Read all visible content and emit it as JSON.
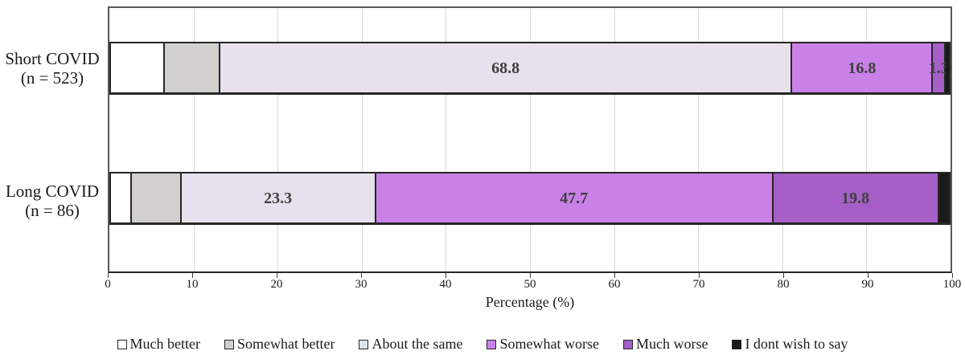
{
  "chart_data": {
    "type": "bar",
    "variant": "horizontal-stacked",
    "title": "",
    "xlabel": "Percentage (%)",
    "ylabel": "",
    "xlim": [
      0,
      100
    ],
    "xticks": [
      0,
      10,
      20,
      30,
      40,
      50,
      60,
      70,
      80,
      90,
      100
    ],
    "grid": "vertical",
    "legend_position": "bottom",
    "categories": [
      {
        "name": "Short COVID",
        "n": "(n = 523)"
      },
      {
        "name": "Long COVID",
        "n": "(n = 86)"
      }
    ],
    "series": [
      {
        "name": "Much better",
        "color": "#ffffff",
        "swatch": "#ffffff",
        "values": [
          6.3,
          2.3
        ],
        "labels": [
          "",
          ""
        ]
      },
      {
        "name": "Somewhat better",
        "color": "#d2cfcf",
        "swatch": "#d2cfcf",
        "values": [
          6.5,
          5.8
        ],
        "labels": [
          "",
          ""
        ]
      },
      {
        "name": "About the same",
        "color": "#e6e1ed",
        "swatch": "#dce6f1",
        "values": [
          68.8,
          23.3
        ],
        "labels": [
          "68.8",
          "23.3"
        ]
      },
      {
        "name": "Somewhat worse",
        "color": "#c981e8",
        "swatch": "#c981e8",
        "values": [
          16.8,
          47.7
        ],
        "labels": [
          "16.8",
          "47.7"
        ]
      },
      {
        "name": "Much worse",
        "color": "#a55fc6",
        "swatch": "#a55fc6",
        "values": [
          1.3,
          19.8
        ],
        "labels": [
          "1.3",
          "19.8"
        ]
      },
      {
        "name": "I dont wish to say",
        "color": "#1a1a1a",
        "swatch": "#1a1a1a",
        "values": [
          0.4,
          1.2
        ],
        "labels": [
          "",
          ""
        ]
      }
    ]
  }
}
